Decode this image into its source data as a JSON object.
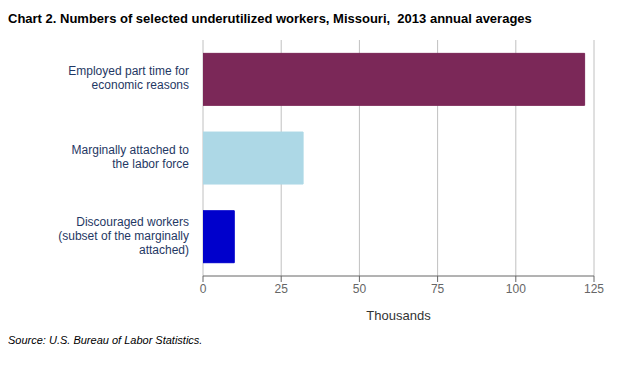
{
  "chart_data": {
    "type": "bar",
    "orientation": "horizontal",
    "title": "Chart 2. Numbers of selected underutilized workers, Missouri,  2013 annual averages",
    "categories": [
      "Discouraged workers\n(subset of the marginally\nattached)",
      "Marginally attached to\nthe labor force",
      "Employed part time for\neconomic reasons"
    ],
    "values": [
      10,
      32,
      122
    ],
    "colors": [
      "#0000CC",
      "#ADD8E6",
      "#7B2858"
    ],
    "xlim": [
      0,
      125
    ],
    "xticks": [
      0,
      25,
      50,
      75,
      100,
      125
    ],
    "xlabel": "Thousands",
    "grid": true,
    "source": "Source: U.S. Bureau of Labor Statistics."
  }
}
